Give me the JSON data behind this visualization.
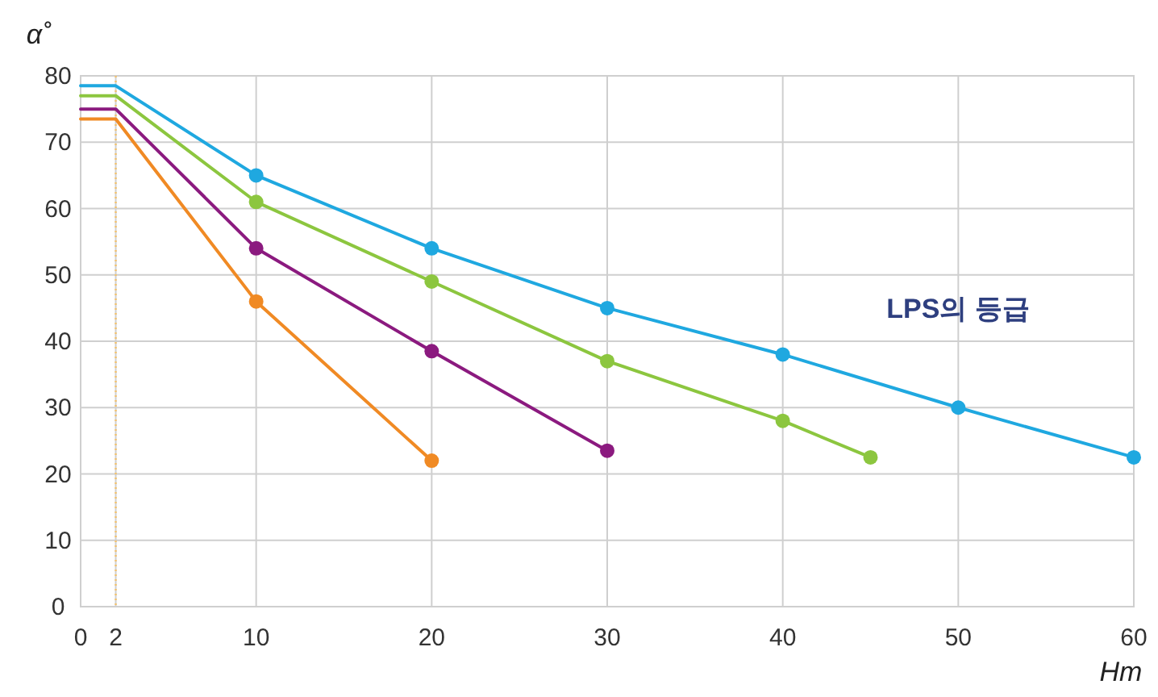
{
  "chart_data": {
    "type": "line",
    "xlabel": "Hm",
    "ylabel": "α˚",
    "xlim": [
      0,
      60
    ],
    "ylim": [
      0,
      80
    ],
    "xticks": [
      0,
      2,
      10,
      20,
      30,
      40,
      50,
      60
    ],
    "yticks": [
      0,
      10,
      20,
      30,
      40,
      50,
      60,
      70,
      80
    ],
    "grid": true,
    "line_style": "solid",
    "annotations": [
      "LPS의 등급"
    ],
    "ref_lines": [
      {
        "axis": "x",
        "value": 2,
        "color": "#f5c26b",
        "line_style": "dotted"
      }
    ],
    "series": [
      {
        "marker": "none",
        "color": "#1fa8e0",
        "x": [
          0,
          2,
          10,
          20,
          30,
          40,
          50,
          60
        ],
        "values": [
          78.5,
          78.5,
          65,
          54,
          45,
          38,
          30,
          22.5
        ]
      },
      {
        "marker": "none",
        "color": "#8cc63f",
        "x": [
          0,
          2,
          10,
          20,
          30,
          40,
          45
        ],
        "values": [
          77,
          77,
          61,
          49,
          37,
          28,
          22.5
        ]
      },
      {
        "marker": "none",
        "color": "#8b1a7f",
        "x": [
          0,
          2,
          10,
          20,
          30
        ],
        "values": [
          75,
          75,
          54,
          38.5,
          23.5
        ]
      },
      {
        "marker": "none",
        "color": "#f08a24",
        "x": [
          0,
          2,
          10,
          20
        ],
        "values": [
          73.5,
          73.5,
          46,
          22
        ]
      },
      {
        "type": "scatter",
        "marker": "circle",
        "color": "#1fa8e0",
        "x": [
          10,
          20,
          30,
          40,
          50,
          60
        ],
        "values": [
          65,
          54,
          45,
          38,
          30,
          22.5
        ]
      },
      {
        "type": "scatter",
        "marker": "circle",
        "color": "#8cc63f",
        "x": [
          10,
          20,
          30,
          40,
          45
        ],
        "values": [
          61,
          49,
          37,
          28,
          22.5
        ]
      },
      {
        "type": "scatter",
        "marker": "circle",
        "color": "#8b1a7f",
        "x": [
          10,
          20,
          30
        ],
        "values": [
          54,
          38.5,
          23.5
        ]
      },
      {
        "type": "scatter",
        "marker": "circle",
        "color": "#f08a24",
        "x": [
          10,
          20
        ],
        "values": [
          46,
          22
        ]
      }
    ]
  }
}
